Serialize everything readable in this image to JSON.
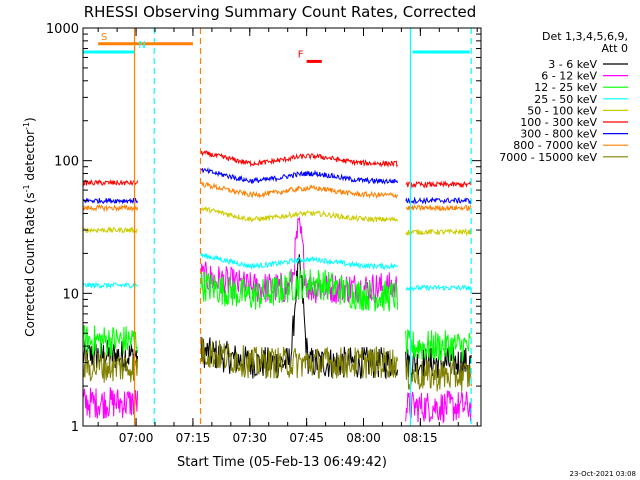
{
  "chart_data": {
    "type": "line",
    "title": "RHESSI Observing Summary Count Rates, Corrected",
    "xlabel": "Start Time (05-Feb-13 06:49:42)",
    "ylabel_main": "Corrected Count Rate (s",
    "ylabel_sup1": "-1",
    "ylabel_mid": " detector",
    "ylabel_sup2": "-1",
    "ylabel_end": ")",
    "yscale": "log",
    "ylim": [
      1,
      1000
    ],
    "xlim_minutes": [
      6.0,
      111.0
    ],
    "x_ticks": [
      {
        "label": "07:00",
        "t": 20.0
      },
      {
        "label": "07:15",
        "t": 35.0
      },
      {
        "label": "07:30",
        "t": 50.0
      },
      {
        "label": "07:45",
        "t": 65.0
      },
      {
        "label": "08:00",
        "t": 80.0
      },
      {
        "label": "08:15",
        "t": 95.0
      }
    ],
    "y_ticks": [
      {
        "label": "1",
        "v": 1
      },
      {
        "label": "10",
        "v": 10
      },
      {
        "label": "100",
        "v": 100
      },
      {
        "label": "1000",
        "v": 1000
      }
    ],
    "legend": {
      "header1": "Det 1,3,4,5,6,9,",
      "header2": "Att 0",
      "placement": "right"
    },
    "series": [
      {
        "name": "3 - 6 keV",
        "color": "#000000",
        "values": {
          "pre": 3.4,
          "post": 3.0,
          "base": 3.0,
          "peak": 15
        }
      },
      {
        "name": "6 - 12 keV",
        "color": "#ff00ff",
        "values": {
          "pre": 1.5,
          "post": 1.4,
          "base": 11,
          "peak": 30
        }
      },
      {
        "name": "12 - 25 keV",
        "color": "#00ff00",
        "values": {
          "pre": 4.4,
          "post": 4.0,
          "base": 9.5,
          "peak": 12
        }
      },
      {
        "name": "25 - 50 keV",
        "color": "#00ffff",
        "values": {
          "pre": 11.5,
          "post": 11,
          "base": 16,
          "peak": 18
        }
      },
      {
        "name": "50 - 100 keV",
        "color": "#cccc00",
        "values": {
          "pre": 30,
          "post": 29,
          "base": 36,
          "peak": 40
        }
      },
      {
        "name": "100 - 300 keV",
        "color": "#ff0000",
        "values": {
          "pre": 68,
          "post": 66,
          "base": 95,
          "peak": 108
        }
      },
      {
        "name": "300 - 800 keV",
        "color": "#0000ff",
        "values": {
          "pre": 50,
          "post": 50,
          "base": 70,
          "peak": 80
        }
      },
      {
        "name": "800 - 7000 keV",
        "color": "#ff8000",
        "values": {
          "pre": 44,
          "post": 44,
          "base": 55,
          "peak": 62
        }
      },
      {
        "name": "7000 - 15000 keV",
        "color": "#808000",
        "values": {
          "pre": 2.8,
          "post": 2.4,
          "base": 3.0,
          "peak": 3.0
        }
      }
    ],
    "data_gaps_minutes": [
      [
        20.5,
        37.0
      ],
      [
        89.0,
        91.0
      ]
    ],
    "annotations": [
      {
        "label": "S",
        "color": "#ff8000",
        "t_start": 10.0,
        "t_end": 35.0,
        "level": 760
      },
      {
        "label": "N",
        "color": "#00ffff",
        "t_start": 6.0,
        "t_end": 19.5,
        "level": 660
      },
      {
        "label": "F",
        "color": "#ff0000",
        "t_start": 65.0,
        "t_end": 69.0,
        "level": 560
      }
    ],
    "night_bar_after": {
      "color": "#00ffff",
      "t_start": 93.0,
      "t_end": 108.0,
      "level": 660
    },
    "vertical_lines": [
      {
        "t": 19.6,
        "color": "#ff8000",
        "style": "solid"
      },
      {
        "t": 24.8,
        "color": "#00ffff",
        "style": "dashed"
      },
      {
        "t": 37.0,
        "color": "#ff8000",
        "style": "dashed"
      },
      {
        "t": 92.4,
        "color": "#00ffff",
        "style": "solid"
      },
      {
        "t": 108.4,
        "color": "#00ffff",
        "style": "dashed"
      }
    ]
  },
  "footer": {
    "timestamp": "23-Oct-2021 03:08"
  }
}
